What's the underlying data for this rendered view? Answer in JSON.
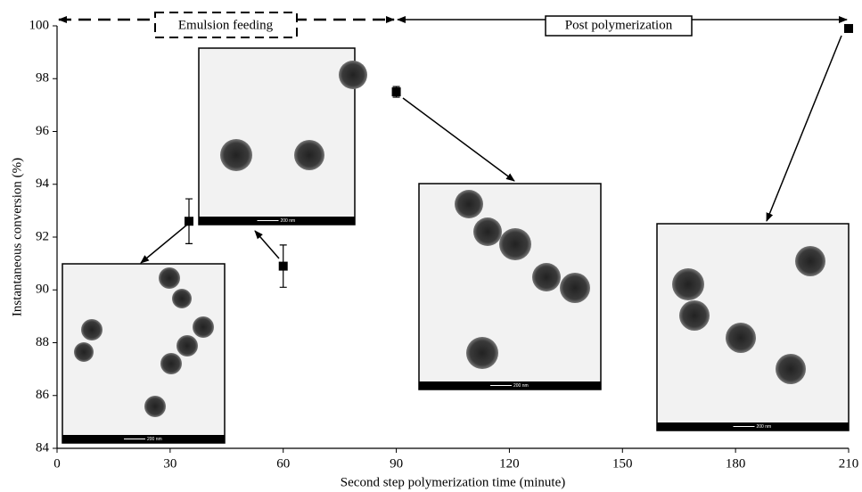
{
  "chart_data": {
    "type": "scatter",
    "xlabel": "Second step polymerization time (minute)",
    "ylabel": "Instantaneous conversion (%)",
    "x": [
      35,
      60,
      90,
      210
    ],
    "series": [
      {
        "color": "#000000",
        "values": [
          92.6,
          90.9,
          97.5,
          99.9
        ],
        "errors": [
          0.85,
          0.8,
          0.2,
          0.1
        ]
      }
    ],
    "xlim": [
      0,
      210
    ],
    "xticks": [
      0,
      30,
      60,
      90,
      120,
      150,
      180,
      210
    ],
    "ylim": [
      84,
      100
    ],
    "yticks": [
      84,
      86,
      88,
      90,
      92,
      94,
      96,
      98,
      100
    ],
    "annotations": [
      "Emulsion feeding",
      "Post polymerization"
    ],
    "insets": [
      {
        "scale_label": "200 nm"
      },
      {
        "scale_label": "200 nm"
      },
      {
        "scale_label": "200 nm"
      },
      {
        "scale_label": "200 nm"
      }
    ]
  }
}
